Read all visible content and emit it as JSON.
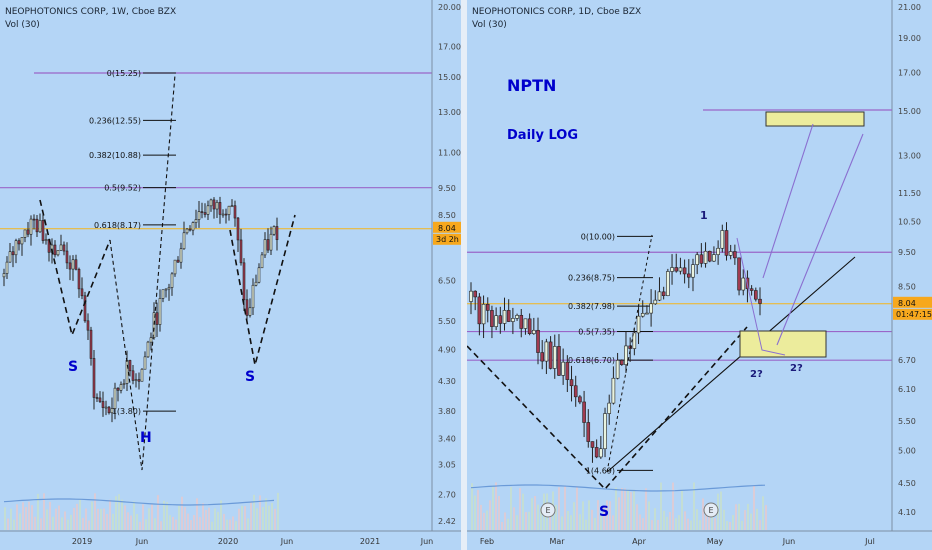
{
  "colors": {
    "background": "#b4d5f6",
    "purple_line": "#9a66c8",
    "gold_line": "#f3b51d",
    "price_tag": "#f7a81d",
    "fib_text": "#111111",
    "pattern_label": "#0000cc",
    "box_fill": "#ecec9c",
    "volume_ma": "#6a9ad8"
  },
  "panels": [
    {
      "symbol_line": "NEOPHOTONICS CORP, 1W, Cboe BZX",
      "volume_line": "Vol (30)",
      "pattern_labels": [
        "S",
        "H",
        "S"
      ],
      "price_tags": [
        "8.04",
        "3d 2h"
      ]
    },
    {
      "symbol_line": "NEOPHOTONICS CORP, 1D, Cboe BZX",
      "volume_line": "Vol (30)",
      "ticker_label": "NPTN",
      "scale_label": "Daily LOG",
      "pattern_labels": [
        "S"
      ],
      "wave_labels": [
        "1",
        "2?",
        "2?"
      ],
      "earnings_markers": [
        "E",
        "E"
      ],
      "price_tags": [
        "8.04",
        "01:47:15"
      ]
    }
  ],
  "chart_data": [
    {
      "type": "line",
      "title": "NEOPHOTONICS CORP, 1W, Cboe BZX",
      "scale": "log",
      "x_ticks": [
        "2019",
        "Jun",
        "2020",
        "Jun",
        "2021",
        "Jun"
      ],
      "y_ticks": [
        "20.00",
        "17.00",
        "15.00",
        "13.00",
        "11.00",
        "9.50",
        "8.50",
        "6.50",
        "5.50",
        "4.90",
        "4.30",
        "3.80",
        "3.40",
        "3.05",
        "2.70",
        "2.42"
      ],
      "last_price": 8.04,
      "horizontal_levels": [
        15.25,
        9.52
      ],
      "fibonacci": [
        {
          "label": "0(15.25)",
          "value": 15.25
        },
        {
          "label": "0.236(12.55)",
          "value": 12.55
        },
        {
          "label": "0.382(10.88)",
          "value": 10.88
        },
        {
          "label": "0.5(9.52)",
          "value": 9.52
        },
        {
          "label": "0.618(8.17)",
          "value": 8.17
        },
        {
          "label": "1(3.80)",
          "value": 3.8
        }
      ],
      "price_series": {
        "name": "",
        "dates": [
          "2018-11",
          "2018-12",
          "2019-01",
          "2019-02",
          "2019-03",
          "2019-04",
          "2019-05",
          "2019-06",
          "2019-07",
          "2019-08",
          "2019-09",
          "2019-10",
          "2019-11",
          "2019-12",
          "2020-01",
          "2020-02",
          "2020-03",
          "2020-04",
          "2020-05"
        ],
        "values": [
          6.6,
          7.8,
          8.3,
          7.6,
          7.3,
          6.4,
          4.0,
          3.8,
          4.5,
          4.4,
          5.6,
          6.5,
          8.1,
          8.7,
          8.8,
          9.0,
          5.5,
          7.2,
          8.04
        ]
      }
    },
    {
      "type": "line",
      "title": "NEOPHOTONICS CORP, 1D, Cboe BZX",
      "scale": "log",
      "x_ticks": [
        "Feb",
        "Mar",
        "Apr",
        "May",
        "Jun",
        "Jul"
      ],
      "y_ticks": [
        "21.00",
        "19.00",
        "17.00",
        "15.00",
        "13.00",
        "11.50",
        "10.50",
        "9.50",
        "8.50",
        "6.70",
        "6.10",
        "5.50",
        "5.00",
        "4.50",
        "4.10"
      ],
      "last_price": 8.04,
      "horizontal_levels": [
        9.5,
        7.35,
        6.7
      ],
      "fibonacci": [
        {
          "label": "0(10.00)",
          "value": 10.0
        },
        {
          "label": "0.236(8.75)",
          "value": 8.75
        },
        {
          "label": "0.382(7.98)",
          "value": 7.98
        },
        {
          "label": "0.5(7.35)",
          "value": 7.35
        },
        {
          "label": "0.618(6.70)",
          "value": 6.7
        },
        {
          "label": "1(4.69)",
          "value": 4.69
        }
      ],
      "price_series": {
        "name": "",
        "dates": [
          "2020-01-27",
          "2020-02-03",
          "2020-02-10",
          "2020-02-17",
          "2020-02-24",
          "2020-03-02",
          "2020-03-09",
          "2020-03-16",
          "2020-03-23",
          "2020-03-30",
          "2020-04-06",
          "2020-04-13",
          "2020-04-20",
          "2020-04-27",
          "2020-05-04",
          "2020-05-11",
          "2020-05-15"
        ],
        "values": [
          8.1,
          7.6,
          7.7,
          7.5,
          6.9,
          6.6,
          5.9,
          4.69,
          6.5,
          7.3,
          8.0,
          8.9,
          9.0,
          9.4,
          10.0,
          8.4,
          8.04
        ]
      },
      "target_zone": {
        "low": 14.3,
        "high": 15.0
      }
    }
  ]
}
